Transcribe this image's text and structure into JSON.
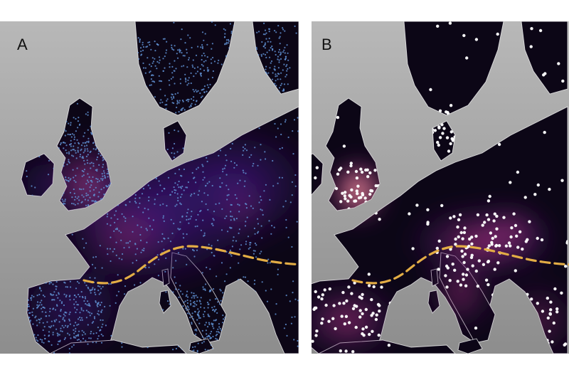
{
  "panels": [
    {
      "label": "A",
      "layer": "dense-blue-points-with-purple-density"
    },
    {
      "label": "B",
      "layer": "sparse-white-points-with-magma-density"
    }
  ],
  "colors": {
    "sea_top": "#b8b8b8",
    "sea_bottom": "#8d8d8d",
    "land": "#0c0616",
    "coast": "#ffffff",
    "boundary_line": "#e3ad45",
    "points_a": "#5f8fd0",
    "points_b": "#ffffff",
    "density_low": "#3b1675",
    "density_mid": "#b3357a",
    "density_high": "#fcd898"
  }
}
